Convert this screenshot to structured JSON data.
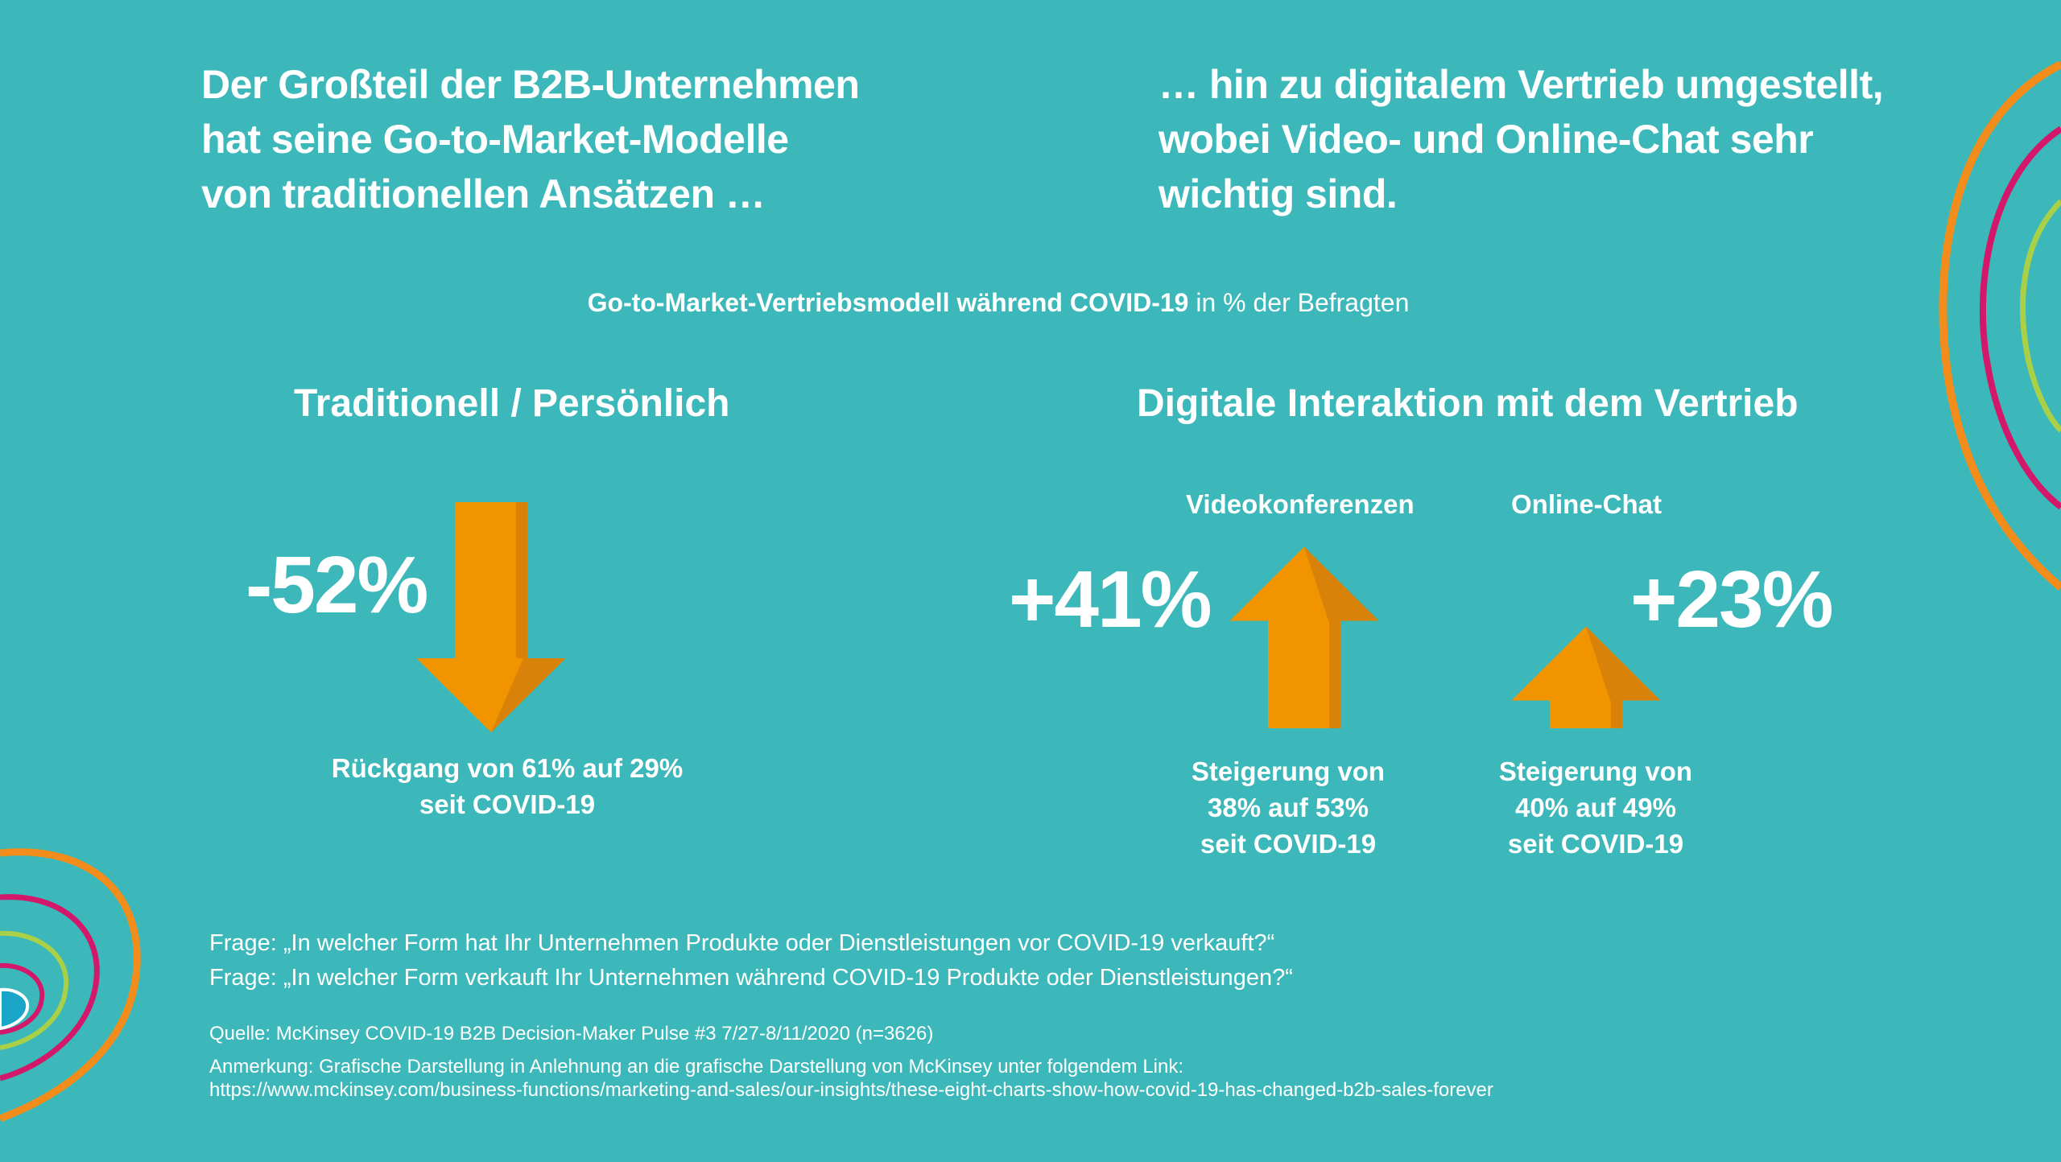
{
  "headline_left": [
    "Der Großteil der B2B-Unternehmen",
    "hat seine Go-to-Market-Modelle",
    "von traditionellen Ansätzen …"
  ],
  "headline_right": [
    "… hin zu digitalem Vertrieb umgestellt,",
    "wobei Video- und Online-Chat sehr",
    "wichtig sind."
  ],
  "subtitle": {
    "bold": "Go-to-Market-Vertriebsmodell während COVID-19",
    "regular": " in % der Befragten"
  },
  "colors": {
    "background": "#3db8ba",
    "arrow": "#f29400",
    "arrow_shade": "#d9820a",
    "ring_orange": "#f28c1a",
    "ring_magenta": "#d3186b",
    "ring_green": "#a9d046"
  },
  "chart_data": [
    {
      "type": "bar",
      "title": "Traditionell / Persönlich",
      "series": [
        {
          "label": "",
          "change": "-52%",
          "change_value": -52,
          "from_pct": 61,
          "to_pct": 29,
          "caption": [
            "Rückgang von 61% auf 29%",
            "seit COVID-19"
          ]
        }
      ]
    },
    {
      "type": "bar",
      "title": "Digitale Interaktion mit dem Vertrieb",
      "series": [
        {
          "label": "Videokonferenzen",
          "change": "+41%",
          "change_value": 41,
          "from_pct": 38,
          "to_pct": 53,
          "caption": [
            "Steigerung von",
            "38% auf 53%",
            "seit COVID-19"
          ]
        },
        {
          "label": "Online-Chat",
          "change": "+23%",
          "change_value": 23,
          "from_pct": 40,
          "to_pct": 49,
          "caption": [
            "Steigerung von",
            "40% auf 49%",
            "seit COVID-19"
          ]
        }
      ]
    }
  ],
  "questions": [
    "Frage: „In welcher Form hat Ihr Unternehmen Produkte oder Dienstleistungen vor COVID-19 verkauft?“",
    "Frage: „In welcher Form verkauft Ihr Unternehmen während COVID-19 Produkte oder Dienstleistungen?“"
  ],
  "source": "Quelle: McKinsey COVID-19 B2B Decision-Maker Pulse #3 7/27-8/11/2020 (n=3626)",
  "note": [
    "Anmerkung: Grafische Darstellung in Anlehnung an die grafische Darstellung von McKinsey unter folgendem Link:",
    "https://www.mckinsey.com/business-functions/marketing-and-sales/our-insights/these-eight-charts-show-how-covid-19-has-changed-b2b-sales-forever"
  ]
}
